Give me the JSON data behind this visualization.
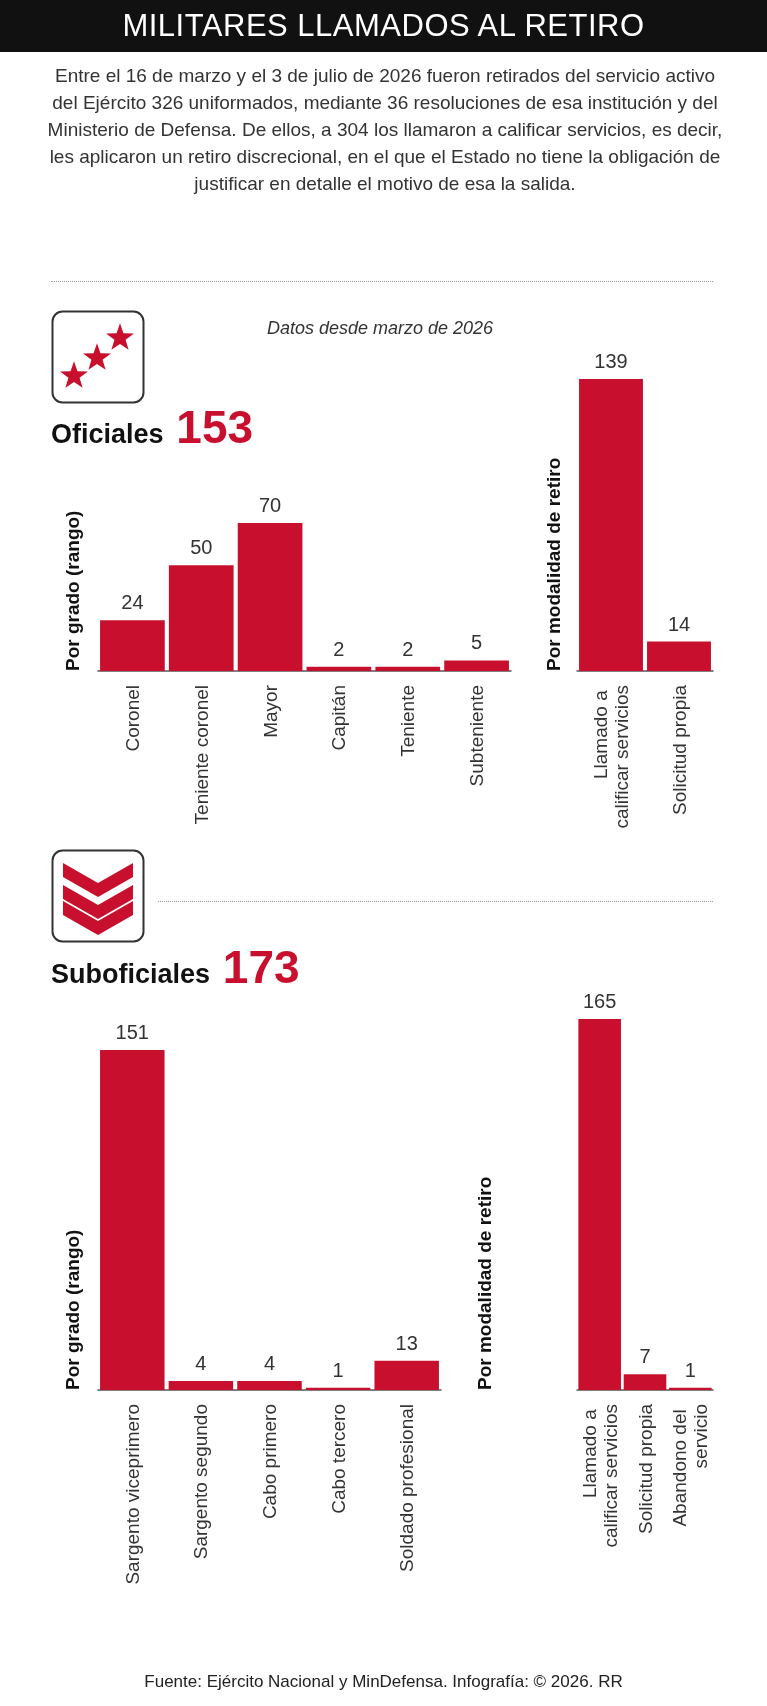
{
  "chart_data": [
    {
      "type": "bar",
      "title": "MILITARES LLAMADOS AL RETIRO",
      "subtitle": "Entre el 16 de marzo y el 3 de julio de 2026 fueron retirados del servicio activo del Ejército 326 uniformados, mediante 36 resoluciones de esa institución y del Ministerio de Defensa. De ellos, a 304 los llamaron a calificar servicios, es decir, les aplicaron un retiro discrecional, en el que el Estado no tiene la obligación de justificar en detalle el motivo de esa la salida.",
      "annotations": [
        "Datos desde marzo de 2026",
        "Oficiales",
        "153"
      ],
      "ylabel": "Por grado (rango)",
      "categories": [
        "Coronel",
        "Teniente coronel",
        "Mayor",
        "Capitán",
        "Teniente",
        "Subteniente"
      ],
      "values": [
        24,
        50,
        70,
        2,
        2,
        5
      ],
      "color": "#c8102e",
      "data_labels": true
    },
    {
      "type": "bar",
      "ylabel": "Por modalidad de retiro",
      "categories": [
        "Llamado a calificar servicios",
        "Solicitud propia"
      ],
      "values": [
        139,
        14
      ],
      "color": "#c8102e",
      "data_labels": true
    },
    {
      "type": "bar",
      "annotations": [
        "Suboficiales",
        "173"
      ],
      "ylabel": "Por grado (rango)",
      "categories": [
        "Sargento viceprimero",
        "Sargento segundo",
        "Cabo primero",
        "Cabo tercero",
        "Soldado profesional"
      ],
      "values": [
        151,
        4,
        4,
        1,
        13
      ],
      "color": "#c8102e",
      "data_labels": true
    },
    {
      "type": "bar",
      "ylabel": "Por modalidad de retiro",
      "annotations": [
        "Fuente: Ejército Nacional y MinDefensa. Infografía: © 2026. RR"
      ],
      "categories": [
        "Llamado a calificar servicios",
        "Solicitud propia",
        "Abandono del servicio"
      ],
      "values": [
        165,
        7,
        1
      ],
      "color": "#c8102e",
      "data_labels": true
    }
  ]
}
